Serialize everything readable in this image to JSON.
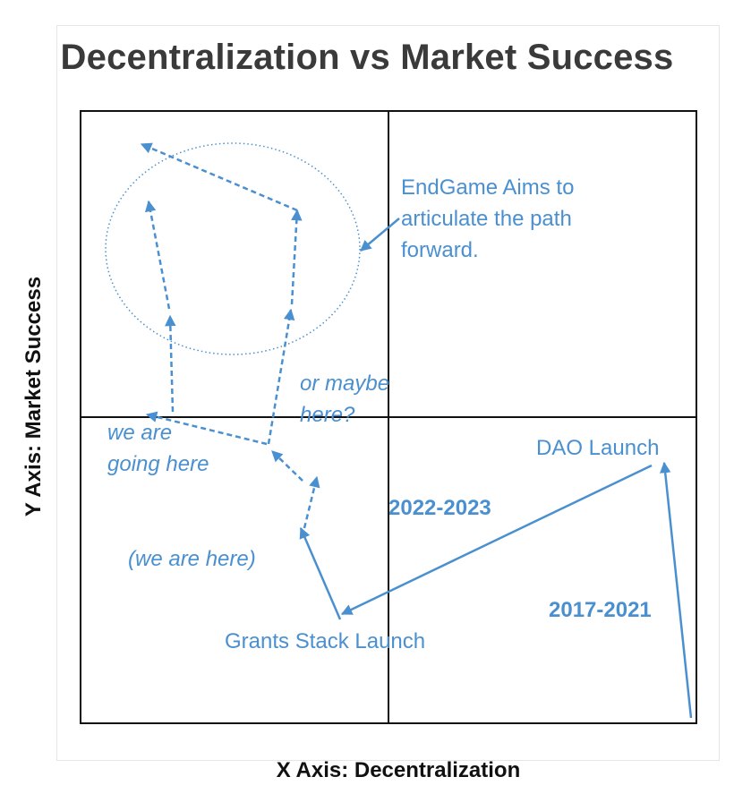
{
  "title": "Decentralization vs Market Success",
  "x_axis_label": "X Axis: Decentralization",
  "y_axis_label": "Y Axis: Market Success",
  "colors": {
    "annotation": "#4a90d0",
    "axes": "#111111",
    "title": "#3a3a3a"
  },
  "annotations": {
    "endgame_line1": "EndGame Aims to",
    "endgame_line2": "articulate the path",
    "endgame_line3": "forward.",
    "or_maybe_line1": "or maybe",
    "or_maybe_line2": "here?",
    "we_are_going_line1": "we are",
    "we_are_going_line2": "going here",
    "we_are_here": "(we are here)",
    "dao_launch": "DAO Launch",
    "grants_stack_launch": "Grants Stack Launch",
    "period_2022_2023": "2022-2023",
    "period_2017_2021": "2017-2021"
  }
}
